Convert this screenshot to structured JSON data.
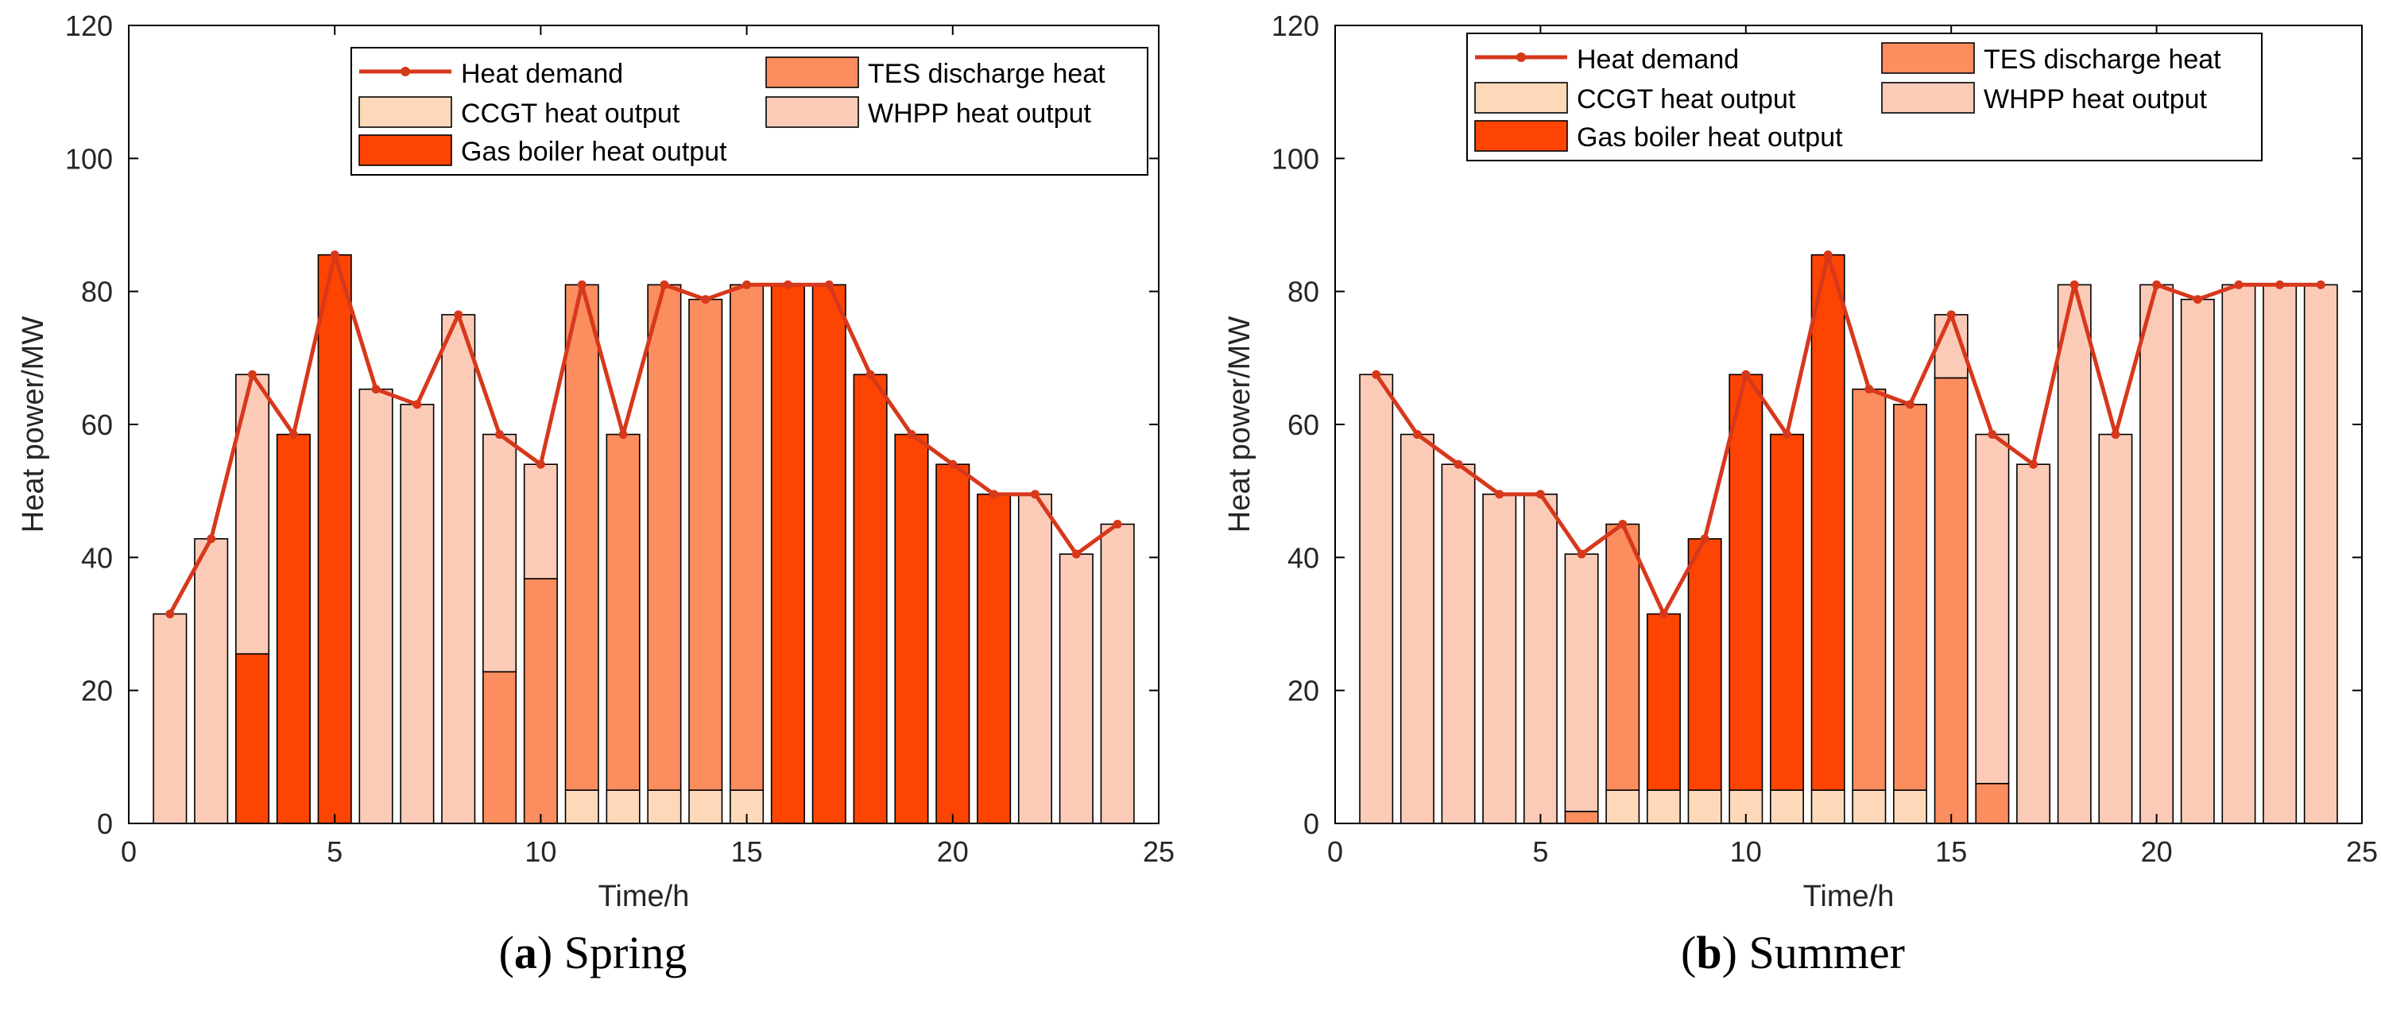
{
  "colors": {
    "demand": "#D7381C",
    "ccgt": "#FDD9BA",
    "tes": "#FB8D5F",
    "boiler": "#FD4402",
    "whpp": "#FCCBB8",
    "axis": "#000000"
  },
  "chart_data": [
    {
      "type": "bar",
      "stacked": true,
      "panel_letter": "a",
      "panel_name": "Spring",
      "xlabel": "Time/h",
      "ylabel": "Heat power/MW",
      "xlim": [
        0,
        25
      ],
      "ylim": [
        0,
        120
      ],
      "xticks": [
        0,
        5,
        10,
        15,
        20,
        25
      ],
      "yticks": [
        0,
        20,
        40,
        60,
        80,
        100,
        120
      ],
      "legend": {
        "placement": "top-right",
        "items": [
          {
            "label": "Heat demand",
            "key": "demand",
            "kind": "line"
          },
          {
            "label": "TES discharge heat",
            "key": "tes",
            "kind": "patch"
          },
          {
            "label": "CCGT heat output",
            "key": "ccgt",
            "kind": "patch"
          },
          {
            "label": "WHPP heat output",
            "key": "whpp",
            "kind": "patch"
          },
          {
            "label": "Gas boiler heat output",
            "key": "boiler",
            "kind": "patch"
          }
        ]
      },
      "x": [
        1,
        2,
        3,
        4,
        5,
        6,
        7,
        8,
        9,
        10,
        11,
        12,
        13,
        14,
        15,
        16,
        17,
        18,
        19,
        20,
        21,
        22,
        23,
        24
      ],
      "demand": [
        31.5,
        42.8,
        67.5,
        58.5,
        85.5,
        65.3,
        63,
        76.5,
        58.5,
        54,
        81,
        58.5,
        81,
        78.8,
        81,
        81,
        81,
        67.5,
        58.5,
        54,
        49.5,
        49.5,
        40.5,
        45
      ],
      "stack_order": [
        "ccgt",
        "tes",
        "boiler",
        "whpp"
      ],
      "series": [
        {
          "name": "CCGT heat output",
          "key": "ccgt",
          "values": [
            0,
            0,
            0,
            0,
            0,
            0,
            0,
            0,
            0,
            0,
            5,
            5,
            5,
            5,
            5,
            0,
            0,
            0,
            0,
            0,
            0,
            0,
            0,
            0
          ]
        },
        {
          "name": "TES discharge heat",
          "key": "tes",
          "values": [
            0,
            0,
            0,
            0,
            0,
            0,
            0,
            0,
            22.8,
            36.8,
            76,
            53.5,
            76,
            73.8,
            76,
            0,
            0,
            0,
            0,
            0,
            0,
            0,
            0,
            0
          ]
        },
        {
          "name": "Gas boiler heat output",
          "key": "boiler",
          "values": [
            0,
            0,
            25.5,
            58.5,
            85.5,
            0,
            0,
            0,
            0,
            0,
            0,
            0,
            0,
            0,
            0,
            81,
            81,
            67.5,
            58.5,
            54,
            49.5,
            0,
            0,
            0
          ]
        },
        {
          "name": "WHPP heat output",
          "key": "whpp",
          "values": [
            31.5,
            42.8,
            42,
            0,
            0,
            65.3,
            63,
            76.5,
            35.7,
            17.2,
            0,
            0,
            0,
            0,
            0,
            0,
            0,
            0,
            0,
            0,
            0,
            49.5,
            40.5,
            45
          ]
        }
      ]
    },
    {
      "type": "bar",
      "stacked": true,
      "panel_letter": "b",
      "panel_name": "Summer",
      "xlabel": "Time/h",
      "ylabel": "Heat power/MW",
      "xlim": [
        0,
        25
      ],
      "ylim": [
        0,
        120
      ],
      "xticks": [
        0,
        5,
        10,
        15,
        20,
        25
      ],
      "yticks": [
        0,
        20,
        40,
        60,
        80,
        100,
        120
      ],
      "legend": {
        "placement": "top-left",
        "items": [
          {
            "label": "Heat demand",
            "key": "demand",
            "kind": "line"
          },
          {
            "label": "TES discharge heat",
            "key": "tes",
            "kind": "patch"
          },
          {
            "label": "CCGT heat output",
            "key": "ccgt",
            "kind": "patch"
          },
          {
            "label": "WHPP heat output",
            "key": "whpp",
            "kind": "patch"
          },
          {
            "label": "Gas boiler heat output",
            "key": "boiler",
            "kind": "patch"
          }
        ]
      },
      "x": [
        1,
        2,
        3,
        4,
        5,
        6,
        7,
        8,
        9,
        10,
        11,
        12,
        13,
        14,
        15,
        16,
        17,
        18,
        19,
        20,
        21,
        22,
        23,
        24
      ],
      "demand": [
        67.5,
        58.5,
        54,
        49.5,
        49.5,
        40.5,
        45,
        31.5,
        42.8,
        67.5,
        58.5,
        85.5,
        65.3,
        63,
        76.5,
        58.5,
        54,
        81,
        58.5,
        81,
        78.8,
        81,
        81,
        81
      ],
      "stack_order": [
        "ccgt",
        "tes",
        "boiler",
        "whpp"
      ],
      "series": [
        {
          "name": "CCGT heat output",
          "key": "ccgt",
          "values": [
            0,
            0,
            0,
            0,
            0,
            0,
            5,
            5,
            5,
            5,
            5,
            5,
            5,
            5,
            0,
            0,
            0,
            0,
            0,
            0,
            0,
            0,
            0,
            0
          ]
        },
        {
          "name": "TES discharge heat",
          "key": "tes",
          "values": [
            0,
            0,
            0,
            0,
            0,
            1.8,
            40,
            0,
            0,
            0,
            0,
            0,
            60.3,
            58,
            67,
            6,
            0,
            0,
            0,
            0,
            0,
            0,
            0,
            0
          ]
        },
        {
          "name": "Gas boiler heat output",
          "key": "boiler",
          "values": [
            0,
            0,
            0,
            0,
            0,
            0,
            0,
            26.5,
            37.8,
            62.5,
            53.5,
            80.5,
            0,
            0,
            0,
            0,
            0,
            0,
            0,
            0,
            0,
            0,
            0,
            0
          ]
        },
        {
          "name": "WHPP heat output",
          "key": "whpp",
          "values": [
            67.5,
            58.5,
            54,
            49.5,
            49.5,
            38.7,
            0,
            0,
            0,
            0,
            0,
            0,
            0,
            0,
            9.5,
            52.5,
            54,
            81,
            58.5,
            81,
            78.8,
            81,
            81,
            81
          ]
        }
      ]
    }
  ]
}
